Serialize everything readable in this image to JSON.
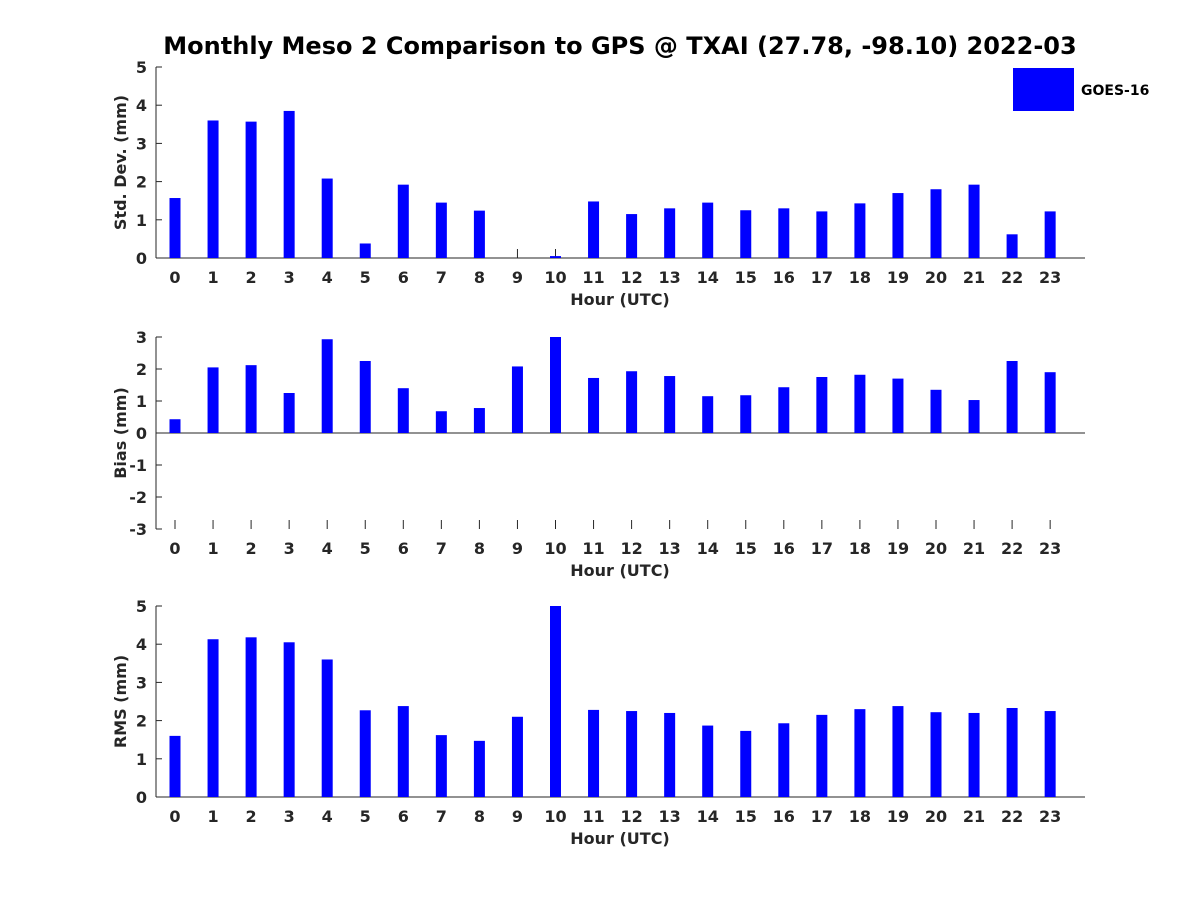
{
  "title": "Monthly Meso 2 Comparison to GPS @ TXAI (27.78, -98.10) 2022-03",
  "legend": {
    "label": "GOES-16",
    "placement": "top-right"
  },
  "colors": {
    "bar": "#0000ff",
    "axis": "#262626"
  },
  "chart_data": [
    {
      "type": "bar",
      "categories": [
        "0",
        "1",
        "2",
        "3",
        "4",
        "5",
        "6",
        "7",
        "8",
        "9",
        "10",
        "11",
        "12",
        "13",
        "14",
        "15",
        "16",
        "17",
        "18",
        "19",
        "20",
        "21",
        "22",
        "23"
      ],
      "values": [
        1.57,
        3.6,
        3.57,
        3.85,
        2.08,
        0.38,
        1.92,
        1.45,
        1.24,
        0,
        0.05,
        1.48,
        1.15,
        1.3,
        1.45,
        1.25,
        1.3,
        1.22,
        1.43,
        1.7,
        1.8,
        1.92,
        0.62,
        1.22
      ],
      "series": [
        {
          "name": "GOES-16"
        }
      ],
      "xlabel": "Hour (UTC)",
      "ylabel": "Std. Dev. (mm)",
      "ylim": [
        0,
        5
      ],
      "yticks": [
        "0",
        "1",
        "2",
        "3",
        "4",
        "5"
      ]
    },
    {
      "type": "bar",
      "categories": [
        "0",
        "1",
        "2",
        "3",
        "4",
        "5",
        "6",
        "7",
        "8",
        "9",
        "10",
        "11",
        "12",
        "13",
        "14",
        "15",
        "16",
        "17",
        "18",
        "19",
        "20",
        "21",
        "22",
        "23"
      ],
      "values": [
        0.43,
        2.05,
        2.12,
        1.25,
        2.93,
        2.25,
        1.4,
        0.68,
        0.78,
        2.08,
        3.0,
        1.72,
        1.93,
        1.78,
        1.15,
        1.18,
        1.43,
        1.75,
        1.82,
        1.7,
        1.35,
        1.03,
        2.25,
        1.9
      ],
      "series": [
        {
          "name": "GOES-16"
        }
      ],
      "xlabel": "Hour (UTC)",
      "ylabel": "Bias (mm)",
      "ylim": [
        -3,
        3
      ],
      "yticks": [
        "-3",
        "-2",
        "-1",
        "0",
        "1",
        "2",
        "3"
      ]
    },
    {
      "type": "bar",
      "categories": [
        "0",
        "1",
        "2",
        "3",
        "4",
        "5",
        "6",
        "7",
        "8",
        "9",
        "10",
        "11",
        "12",
        "13",
        "14",
        "15",
        "16",
        "17",
        "18",
        "19",
        "20",
        "21",
        "22",
        "23"
      ],
      "values": [
        1.6,
        4.13,
        4.18,
        4.05,
        3.6,
        2.27,
        2.38,
        1.62,
        1.47,
        2.1,
        5.0,
        2.28,
        2.25,
        2.2,
        1.87,
        1.73,
        1.93,
        2.15,
        2.3,
        2.38,
        2.22,
        2.2,
        2.33,
        2.25
      ],
      "series": [
        {
          "name": "GOES-16"
        }
      ],
      "xlabel": "Hour (UTC)",
      "ylabel": "RMS (mm)",
      "ylim": [
        0,
        5
      ],
      "yticks": [
        "0",
        "1",
        "2",
        "3",
        "4",
        "5"
      ]
    }
  ]
}
